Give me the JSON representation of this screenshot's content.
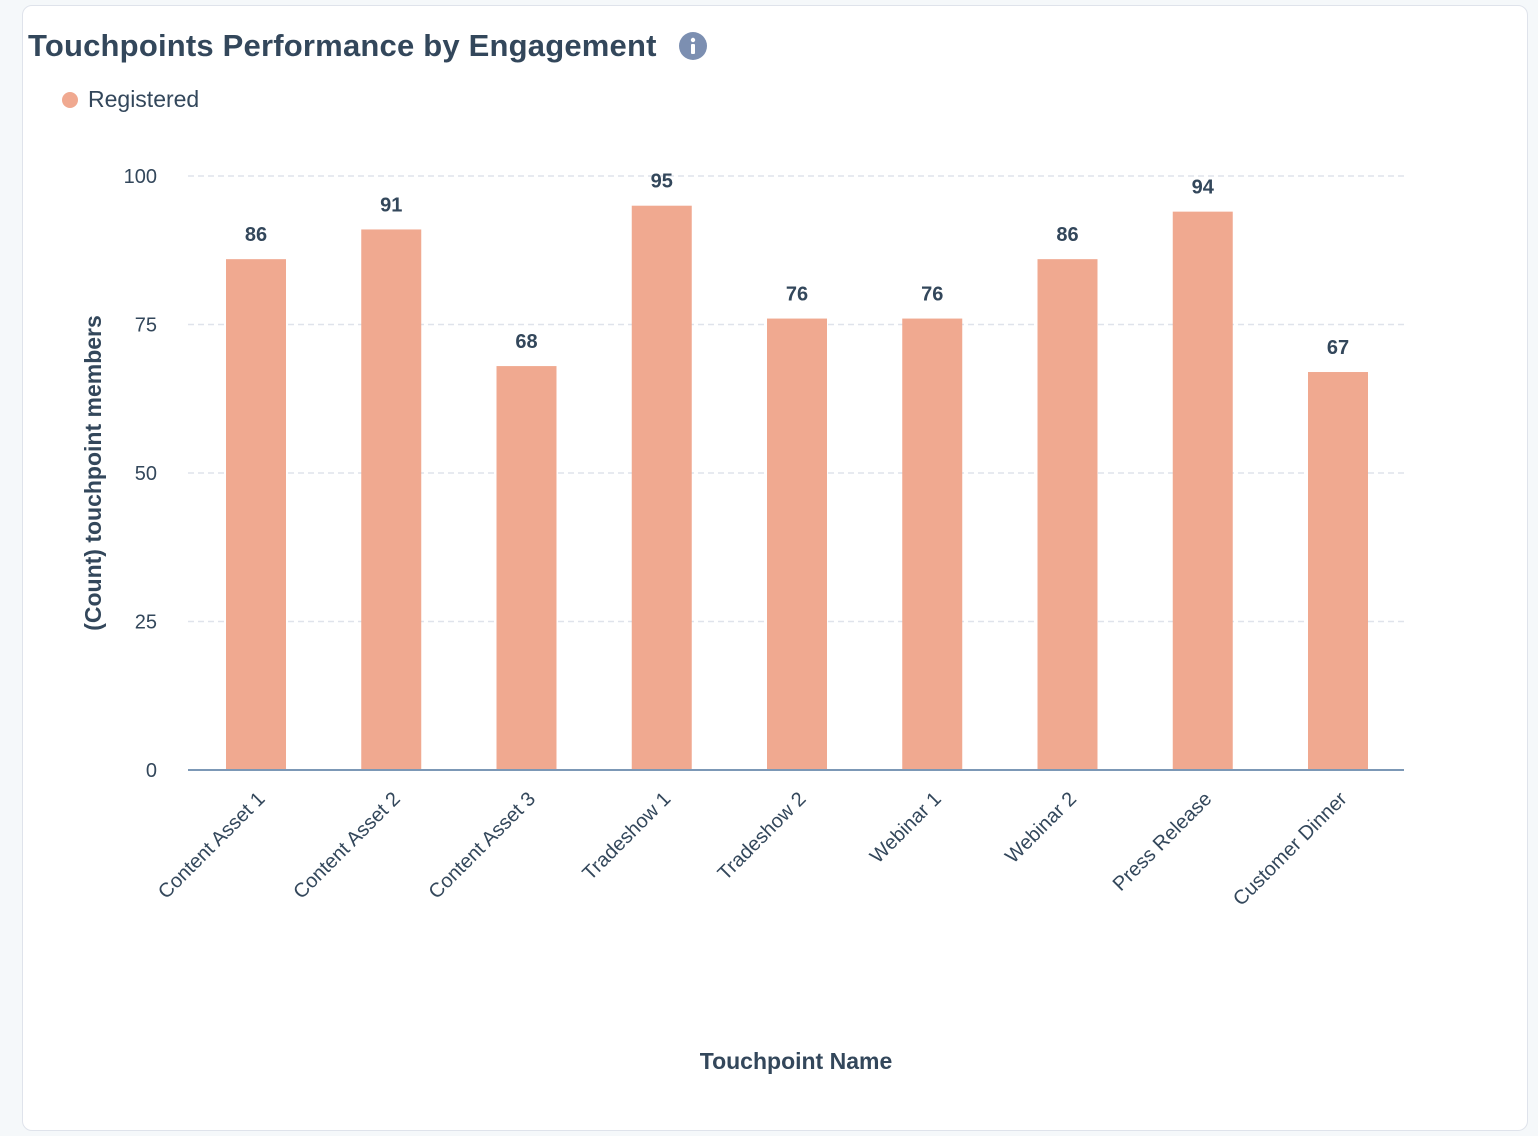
{
  "card": {
    "title": "Touchpoints Performance by Engagement",
    "info_icon": "info-icon"
  },
  "colors": {
    "bar": "#f0a990",
    "text": "#33475b",
    "grid": "#dfe3eb",
    "axis": "#7c98b6",
    "info": "#7c8fb1"
  },
  "chart_data": {
    "type": "bar",
    "title": "Touchpoints Performance by Engagement",
    "xlabel": "Touchpoint Name",
    "ylabel": "(Count) touchpoint members",
    "categories": [
      "Content Asset 1",
      "Content Asset 2",
      "Content Asset 3",
      "Tradeshow 1",
      "Tradeshow 2",
      "Webinar 1",
      "Webinar 2",
      "Press Release",
      "Customer Dinner"
    ],
    "series": [
      {
        "name": "Registered",
        "values": [
          86,
          91,
          68,
          95,
          76,
          76,
          86,
          94,
          67
        ]
      }
    ],
    "ylim": [
      0,
      100
    ],
    "yticks": [
      0,
      25,
      50,
      75,
      100
    ],
    "grid": true,
    "legend": "top-left"
  }
}
